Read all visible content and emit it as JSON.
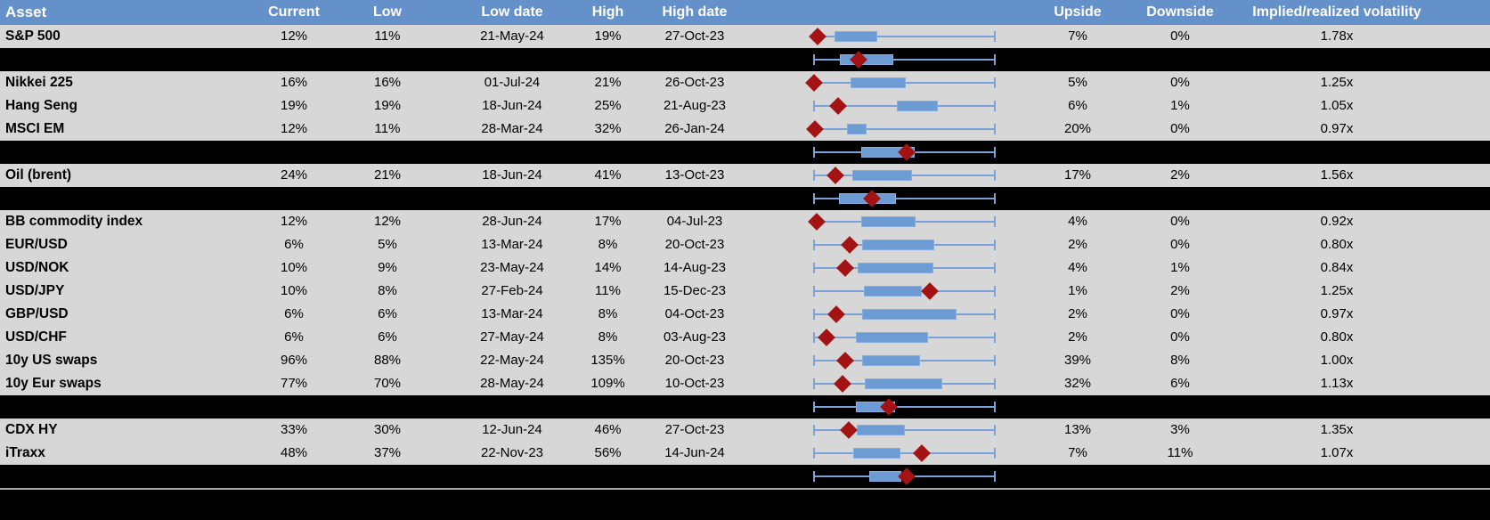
{
  "colors": {
    "header_bg": "#6591CB",
    "header_text": "#FFFFFF",
    "row_bg": "#D7D7D7",
    "summary_row_bg": "#000000",
    "whisker_blue": "#7AA1D8",
    "box_blue": "#6D9BD4",
    "marker_red": "#A31314",
    "footer_divider": "#ABABAB"
  },
  "chart_data": {
    "type": "table",
    "note": "Volatility table; each row embeds a horizontal box plot: whisker = full low-high range (normalized 0-100), blue box = sub-range, red diamond = current level position",
    "whisker_range_pct": [
      0,
      100
    ],
    "columns": [
      "Asset",
      "Current",
      "Low",
      "Low date",
      "High",
      "High date",
      "",
      "Upside",
      "Downside",
      "Implied/realized volatility"
    ],
    "rows": [
      {
        "type": "data",
        "asset": "S&P 500",
        "current": "12%",
        "low": "11%",
        "low_date": "21-May-24",
        "high": "19%",
        "high_date": "27-Oct-23",
        "upside": "7%",
        "downside": "0%",
        "implied_realized": "1.78x",
        "plot": {
          "box_start_pct": 11.3,
          "box_end_pct": 35.0,
          "marker_pct": 2.0
        }
      },
      {
        "type": "summary",
        "plot": {
          "box_start_pct": 14.3,
          "box_end_pct": 43.8,
          "marker_pct": 24.6
        }
      },
      {
        "type": "data",
        "asset": "Nikkei 225",
        "current": "16%",
        "low": "16%",
        "low_date": "01-Jul-24",
        "high": "21%",
        "high_date": "26-Oct-23",
        "upside": "5%",
        "downside": "0%",
        "implied_realized": "1.25x",
        "plot": {
          "box_start_pct": 20.2,
          "box_end_pct": 50.7,
          "marker_pct": 0.0
        }
      },
      {
        "type": "data",
        "asset": "Hang Seng",
        "current": "19%",
        "low": "19%",
        "low_date": "18-Jun-24",
        "high": "25%",
        "high_date": "21-Aug-23",
        "upside": "6%",
        "downside": "1%",
        "implied_realized": "1.05x",
        "plot": {
          "box_start_pct": 45.8,
          "box_end_pct": 68.5,
          "marker_pct": 13.3
        }
      },
      {
        "type": "data",
        "asset": "MSCI EM",
        "current": "12%",
        "low": "11%",
        "low_date": "28-Mar-24",
        "high": "32%",
        "high_date": "26-Jan-24",
        "upside": "20%",
        "downside": "0%",
        "implied_realized": "0.97x",
        "plot": {
          "box_start_pct": 18.2,
          "box_end_pct": 29.1,
          "marker_pct": 0.5
        }
      },
      {
        "type": "summary",
        "plot": {
          "box_start_pct": 26.1,
          "box_end_pct": 55.7,
          "marker_pct": 51.2
        }
      },
      {
        "type": "data",
        "asset": "Oil (brent)",
        "current": "24%",
        "low": "21%",
        "low_date": "18-Jun-24",
        "high": "41%",
        "high_date": "13-Oct-23",
        "upside": "17%",
        "downside": "2%",
        "implied_realized": "1.56x",
        "plot": {
          "box_start_pct": 21.2,
          "box_end_pct": 54.2,
          "marker_pct": 11.8
        }
      },
      {
        "type": "summary",
        "plot": {
          "box_start_pct": 13.8,
          "box_end_pct": 45.3,
          "marker_pct": 32.0
        }
      },
      {
        "type": "data",
        "asset": "BB commodity index",
        "current": "12%",
        "low": "12%",
        "low_date": "28-Jun-24",
        "high": "17%",
        "high_date": "04-Jul-23",
        "upside": "4%",
        "downside": "0%",
        "implied_realized": "0.92x",
        "plot": {
          "box_start_pct": 26.1,
          "box_end_pct": 56.2,
          "marker_pct": 1.5
        }
      },
      {
        "type": "data",
        "asset": "EUR/USD",
        "current": "6%",
        "low": "5%",
        "low_date": "13-Mar-24",
        "high": "8%",
        "high_date": "20-Oct-23",
        "upside": "2%",
        "downside": "0%",
        "implied_realized": "0.80x",
        "plot": {
          "box_start_pct": 26.6,
          "box_end_pct": 66.5,
          "marker_pct": 19.7
        }
      },
      {
        "type": "data",
        "asset": "USD/NOK",
        "current": "10%",
        "low": "9%",
        "low_date": "23-May-24",
        "high": "14%",
        "high_date": "14-Aug-23",
        "upside": "4%",
        "downside": "1%",
        "implied_realized": "0.84x",
        "plot": {
          "box_start_pct": 24.1,
          "box_end_pct": 66.0,
          "marker_pct": 17.2
        }
      },
      {
        "type": "data",
        "asset": "USD/JPY",
        "current": "10%",
        "low": "8%",
        "low_date": "27-Feb-24",
        "high": "11%",
        "high_date": "15-Dec-23",
        "upside": "1%",
        "downside": "2%",
        "implied_realized": "1.25x",
        "plot": {
          "box_start_pct": 27.6,
          "box_end_pct": 59.6,
          "marker_pct": 64.0
        }
      },
      {
        "type": "data",
        "asset": "GBP/USD",
        "current": "6%",
        "low": "6%",
        "low_date": "13-Mar-24",
        "high": "8%",
        "high_date": "04-Oct-23",
        "upside": "2%",
        "downside": "0%",
        "implied_realized": "0.97x",
        "plot": {
          "box_start_pct": 26.6,
          "box_end_pct": 78.8,
          "marker_pct": 12.3
        }
      },
      {
        "type": "data",
        "asset": "USD/CHF",
        "current": "6%",
        "low": "6%",
        "low_date": "27-May-24",
        "high": "8%",
        "high_date": "03-Aug-23",
        "upside": "2%",
        "downside": "0%",
        "implied_realized": "0.80x",
        "plot": {
          "box_start_pct": 23.2,
          "box_end_pct": 63.1,
          "marker_pct": 6.9
        }
      },
      {
        "type": "data",
        "asset": "10y US swaps",
        "current": "96%",
        "low": "88%",
        "low_date": "22-May-24",
        "high": "135%",
        "high_date": "20-Oct-23",
        "upside": "39%",
        "downside": "8%",
        "implied_realized": "1.00x",
        "plot": {
          "box_start_pct": 26.6,
          "box_end_pct": 58.6,
          "marker_pct": 17.2
        }
      },
      {
        "type": "data",
        "asset": "10y Eur swaps",
        "current": "77%",
        "low": "70%",
        "low_date": "28-May-24",
        "high": "109%",
        "high_date": "10-Oct-23",
        "upside": "32%",
        "downside": "6%",
        "implied_realized": "1.13x",
        "plot": {
          "box_start_pct": 28.1,
          "box_end_pct": 70.9,
          "marker_pct": 15.8
        }
      },
      {
        "type": "summary",
        "plot": {
          "box_start_pct": 23.2,
          "box_end_pct": 44.8,
          "marker_pct": 41.4
        }
      },
      {
        "type": "data",
        "asset": "CDX HY",
        "current": "33%",
        "low": "30%",
        "low_date": "12-Jun-24",
        "high": "46%",
        "high_date": "27-Oct-23",
        "upside": "13%",
        "downside": "3%",
        "implied_realized": "1.35x",
        "plot": {
          "box_start_pct": 23.6,
          "box_end_pct": 50.2,
          "marker_pct": 19.2
        }
      },
      {
        "type": "data",
        "asset": "iTraxx",
        "current": "48%",
        "low": "37%",
        "low_date": "22-Nov-23",
        "high": "56%",
        "high_date": "14-Jun-24",
        "upside": "7%",
        "downside": "11%",
        "implied_realized": "1.07x",
        "plot": {
          "box_start_pct": 21.7,
          "box_end_pct": 47.8,
          "marker_pct": 59.6
        }
      },
      {
        "type": "summary",
        "plot": {
          "box_start_pct": 30.5,
          "box_end_pct": 48.3,
          "marker_pct": 51.2
        }
      }
    ]
  }
}
